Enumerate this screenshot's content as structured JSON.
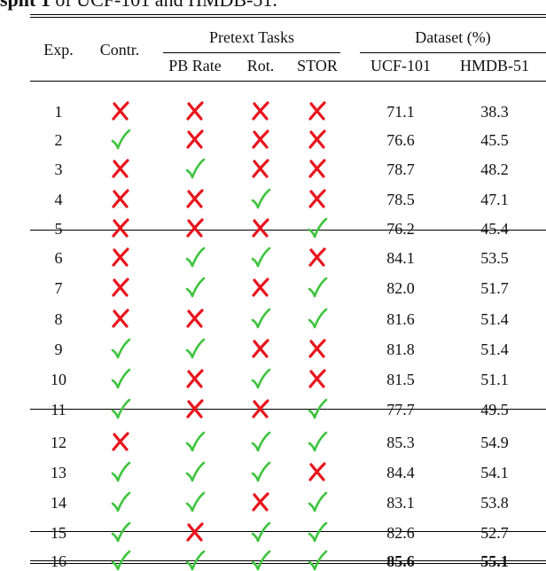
{
  "caption": {
    "bold_part": "split 1",
    "rest": " of UCF-101 and HMDB-51."
  },
  "header": {
    "exp": "Exp.",
    "contr": "Contr.",
    "pretext_group": "Pretext Tasks",
    "dataset_group": "Dataset (%)",
    "pb_rate": "PB Rate",
    "rot": "Rot.",
    "stor": "STOR",
    "ucf": "UCF-101",
    "hmdb": "HMDB-51"
  },
  "colors": {
    "check": "#3ec43e",
    "cross": "#e8141c"
  },
  "rows": [
    {
      "exp": "1",
      "contr": false,
      "pb": false,
      "rot": false,
      "stor": false,
      "ucf": "71.1",
      "hmdb": "38.3"
    },
    {
      "exp": "2",
      "contr": true,
      "pb": false,
      "rot": false,
      "stor": false,
      "ucf": "76.6",
      "hmdb": "45.5"
    },
    {
      "exp": "3",
      "contr": false,
      "pb": true,
      "rot": false,
      "stor": false,
      "ucf": "78.7",
      "hmdb": "48.2"
    },
    {
      "exp": "4",
      "contr": false,
      "pb": false,
      "rot": true,
      "stor": false,
      "ucf": "78.5",
      "hmdb": "47.1"
    },
    {
      "exp": "5",
      "contr": false,
      "pb": false,
      "rot": false,
      "stor": true,
      "ucf": "76.2",
      "hmdb": "45.4"
    },
    {
      "exp": "6",
      "contr": false,
      "pb": true,
      "rot": true,
      "stor": false,
      "ucf": "84.1",
      "hmdb": "53.5"
    },
    {
      "exp": "7",
      "contr": false,
      "pb": true,
      "rot": false,
      "stor": true,
      "ucf": "82.0",
      "hmdb": "51.7"
    },
    {
      "exp": "8",
      "contr": false,
      "pb": false,
      "rot": true,
      "stor": true,
      "ucf": "81.6",
      "hmdb": "51.4"
    },
    {
      "exp": "9",
      "contr": true,
      "pb": true,
      "rot": false,
      "stor": false,
      "ucf": "81.8",
      "hmdb": "51.4"
    },
    {
      "exp": "10",
      "contr": true,
      "pb": false,
      "rot": true,
      "stor": false,
      "ucf": "81.5",
      "hmdb": "51.1"
    },
    {
      "exp": "11",
      "contr": true,
      "pb": false,
      "rot": false,
      "stor": true,
      "ucf": "77.7",
      "hmdb": "49.5"
    },
    {
      "exp": "12",
      "contr": false,
      "pb": true,
      "rot": true,
      "stor": true,
      "ucf": "85.3",
      "hmdb": "54.9"
    },
    {
      "exp": "13",
      "contr": true,
      "pb": true,
      "rot": true,
      "stor": false,
      "ucf": "84.4",
      "hmdb": "54.1"
    },
    {
      "exp": "14",
      "contr": true,
      "pb": true,
      "rot": false,
      "stor": true,
      "ucf": "83.1",
      "hmdb": "53.8"
    },
    {
      "exp": "15",
      "contr": true,
      "pb": false,
      "rot": true,
      "stor": true,
      "ucf": "82.6",
      "hmdb": "52.7"
    },
    {
      "exp": "16",
      "contr": true,
      "pb": true,
      "rot": true,
      "stor": true,
      "ucf": "85.6",
      "hmdb": "55.1",
      "bold_values": true
    }
  ]
}
